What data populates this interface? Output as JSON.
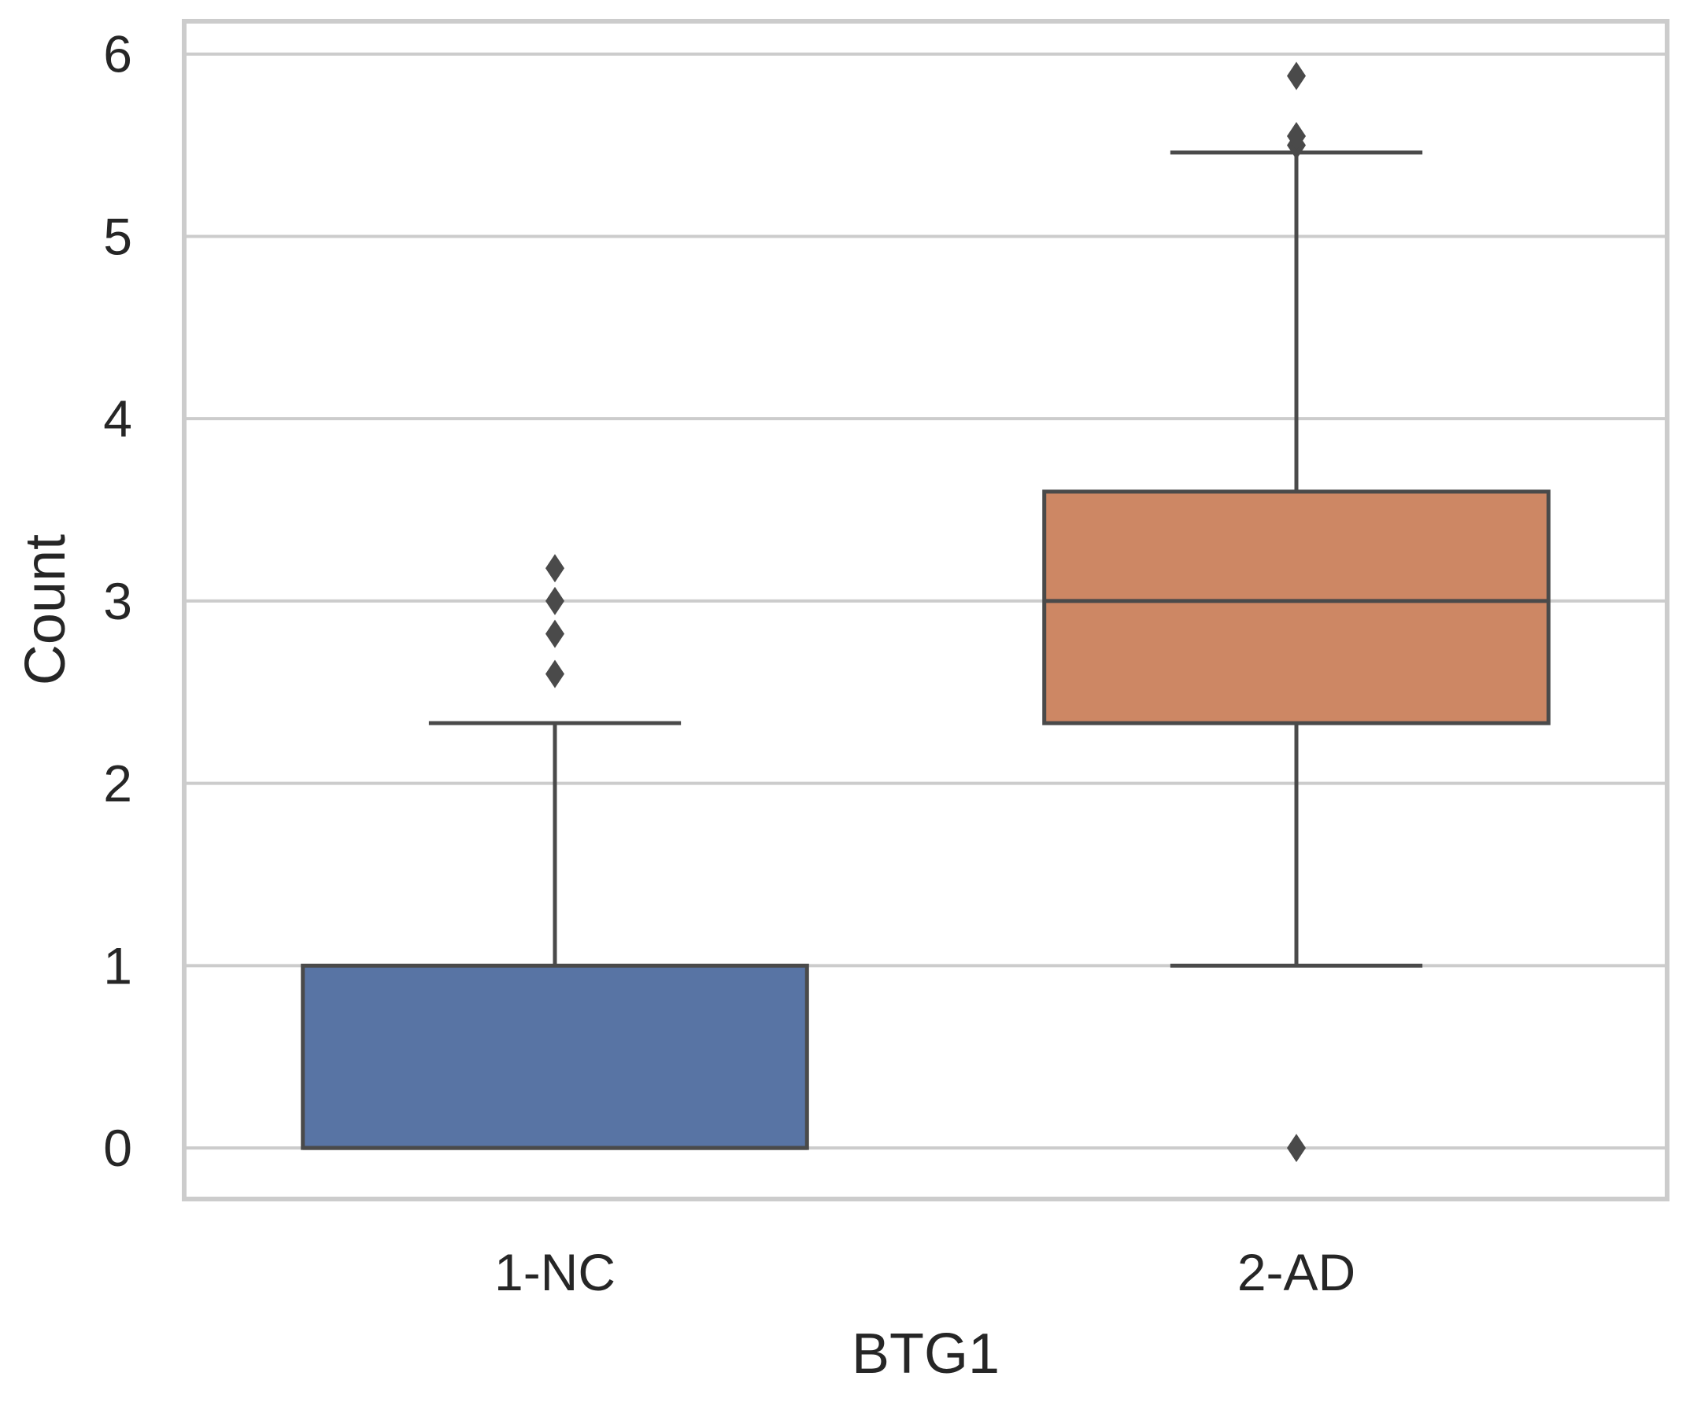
{
  "chart_data": {
    "type": "box",
    "title": "",
    "xlabel": "BTG1",
    "ylabel": "Count",
    "ylim": [
      -0.28,
      6.18
    ],
    "yticks": [
      0,
      1,
      2,
      3,
      4,
      5,
      6
    ],
    "categories": [
      "1-NC",
      "2-AD"
    ],
    "grid": "horizontal",
    "colors": {
      "1-NC": "#5874a4",
      "2-AD": "#cd8764",
      "line": "#4a4a4a",
      "grid": "#cccccc",
      "frame": "#cccccc"
    },
    "boxes": [
      {
        "category": "1-NC",
        "whisker_low": 0,
        "q1": 0,
        "median": 0,
        "q3": 1,
        "whisker_high": 2.33,
        "outliers": [
          2.6,
          2.82,
          3.0,
          3.18
        ]
      },
      {
        "category": "2-AD",
        "whisker_low": 1,
        "q1": 2.33,
        "median": 3,
        "q3": 3.6,
        "whisker_high": 5.46,
        "outliers": [
          0,
          5.5,
          5.55,
          5.88
        ]
      }
    ]
  }
}
